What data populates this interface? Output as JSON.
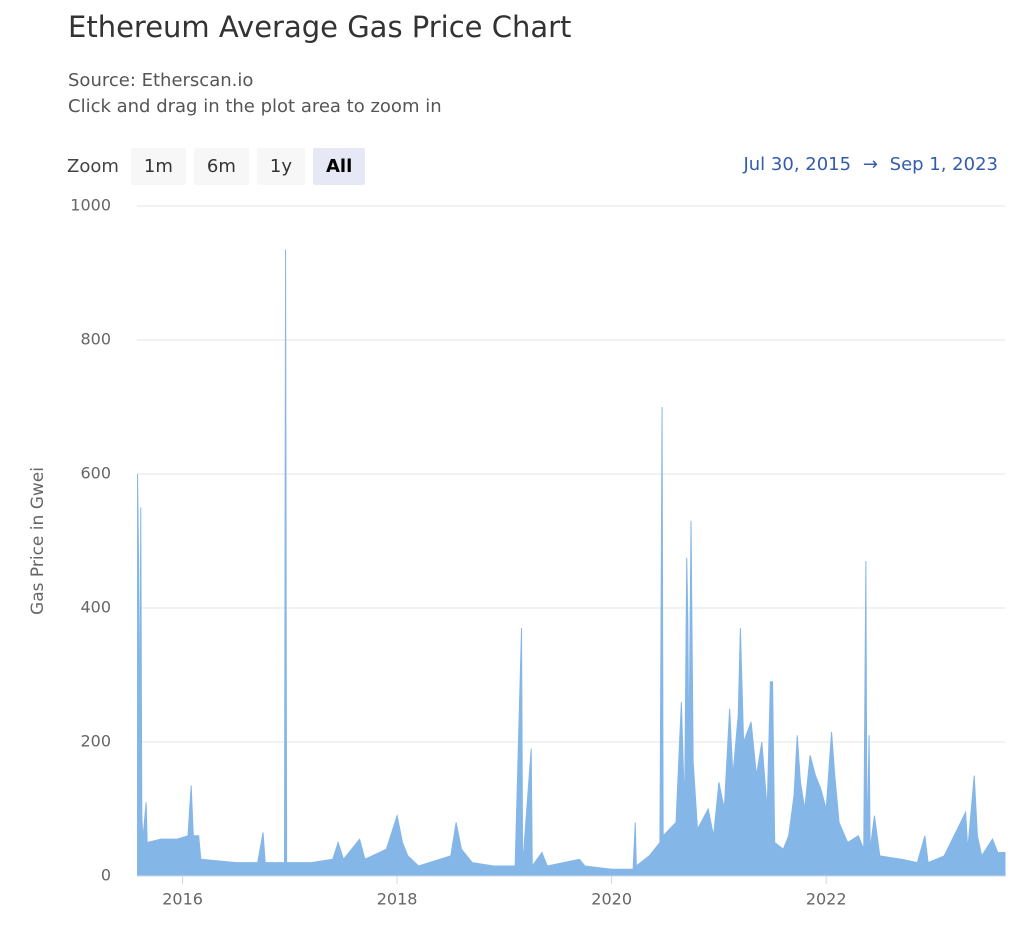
{
  "chart_data": {
    "type": "area",
    "title": "Ethereum Average Gas Price Chart",
    "source": "Source: Etherscan.io",
    "note": "Click and drag in the plot area to zoom in",
    "zoom_label": "Zoom",
    "zoom_buttons": [
      "1m",
      "6m",
      "1y",
      "All"
    ],
    "zoom_selected": "All",
    "range_start": "Jul 30, 2015",
    "range_arrow": "→",
    "range_end": "Sep 1, 2023",
    "y_label": "Gas Price in Gwei",
    "color": "#84b6e8",
    "grid": true,
    "xlim": [
      2015.575,
      2023.667
    ],
    "xticks": [
      2016,
      2018,
      2020,
      2022
    ],
    "ylim": [
      0,
      1000
    ],
    "yticks": [
      0,
      200,
      400,
      600,
      800,
      1000
    ],
    "x": [
      2015.58,
      2015.59,
      2015.6,
      2015.61,
      2015.62,
      2015.63,
      2015.66,
      2015.67,
      2015.8,
      2015.95,
      2016.05,
      2016.08,
      2016.1,
      2016.15,
      2016.17,
      2016.5,
      2016.7,
      2016.75,
      2016.77,
      2016.95,
      2016.96,
      2016.97,
      2017.2,
      2017.4,
      2017.45,
      2017.5,
      2017.65,
      2017.7,
      2017.9,
      2018.0,
      2018.05,
      2018.1,
      2018.2,
      2018.5,
      2018.55,
      2018.6,
      2018.7,
      2018.9,
      2019.1,
      2019.16,
      2019.17,
      2019.25,
      2019.26,
      2019.35,
      2019.4,
      2019.7,
      2019.75,
      2020.0,
      2020.2,
      2020.22,
      2020.23,
      2020.35,
      2020.45,
      2020.47,
      2020.48,
      2020.6,
      2020.65,
      2020.68,
      2020.7,
      2020.71,
      2020.72,
      2020.74,
      2020.76,
      2020.8,
      2020.9,
      2020.95,
      2021.0,
      2021.05,
      2021.1,
      2021.13,
      2021.18,
      2021.2,
      2021.23,
      2021.3,
      2021.35,
      2021.4,
      2021.45,
      2021.48,
      2021.5,
      2021.52,
      2021.6,
      2021.65,
      2021.7,
      2021.73,
      2021.76,
      2021.8,
      2021.85,
      2021.9,
      2021.95,
      2022.0,
      2022.05,
      2022.08,
      2022.12,
      2022.2,
      2022.3,
      2022.35,
      2022.37,
      2022.38,
      2022.4,
      2022.41,
      2022.45,
      2022.5,
      2022.7,
      2022.85,
      2022.92,
      2022.95,
      2023.1,
      2023.3,
      2023.32,
      2023.38,
      2023.41,
      2023.45,
      2023.55,
      2023.6,
      2023.667
    ],
    "values": [
      600,
      470,
      190,
      550,
      90,
      55,
      110,
      50,
      55,
      55,
      60,
      135,
      60,
      60,
      25,
      20,
      20,
      65,
      20,
      20,
      935,
      20,
      20,
      25,
      50,
      25,
      55,
      25,
      40,
      90,
      50,
      30,
      15,
      30,
      80,
      40,
      20,
      15,
      15,
      370,
      15,
      190,
      15,
      35,
      15,
      25,
      15,
      10,
      10,
      80,
      15,
      30,
      50,
      700,
      60,
      80,
      260,
      100,
      475,
      380,
      170,
      530,
      170,
      70,
      100,
      60,
      140,
      100,
      250,
      150,
      240,
      370,
      200,
      230,
      150,
      200,
      100,
      290,
      290,
      50,
      40,
      60,
      120,
      210,
      140,
      100,
      180,
      150,
      130,
      100,
      215,
      150,
      80,
      50,
      60,
      40,
      470,
      40,
      210,
      40,
      90,
      30,
      25,
      20,
      60,
      20,
      30,
      95,
      40,
      150,
      60,
      30,
      55,
      35,
      35
    ]
  }
}
